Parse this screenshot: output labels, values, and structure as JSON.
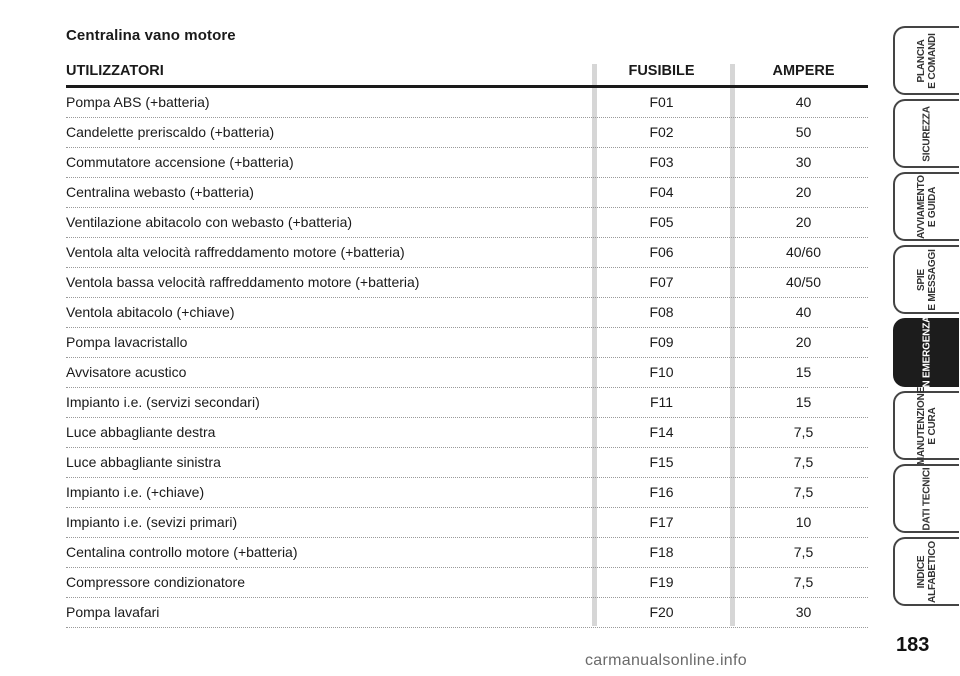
{
  "section_title": "Centralina vano motore",
  "table": {
    "headers": {
      "user": "UTILIZZATORI",
      "fuse": "FUSIBILE",
      "amp": "AMPERE"
    },
    "rows": [
      {
        "user": "Pompa ABS (+batteria)",
        "fuse": "F01",
        "amp": "40"
      },
      {
        "user": "Candelette preriscaldo (+batteria)",
        "fuse": "F02",
        "amp": "50"
      },
      {
        "user": "Commutatore accensione (+batteria)",
        "fuse": "F03",
        "amp": "30"
      },
      {
        "user": "Centralina webasto (+batteria)",
        "fuse": "F04",
        "amp": "20"
      },
      {
        "user": "Ventilazione abitacolo con webasto (+batteria)",
        "fuse": "F05",
        "amp": "20"
      },
      {
        "user": "Ventola alta velocità raffreddamento motore (+batteria)",
        "fuse": "F06",
        "amp": "40/60"
      },
      {
        "user": "Ventola bassa velocità raffreddamento motore (+batteria)",
        "fuse": "F07",
        "amp": "40/50"
      },
      {
        "user": "Ventola abitacolo (+chiave)",
        "fuse": "F08",
        "amp": "40"
      },
      {
        "user": "Pompa lavacristallo",
        "fuse": "F09",
        "amp": "20"
      },
      {
        "user": "Avvisatore acustico",
        "fuse": "F10",
        "amp": "15"
      },
      {
        "user": "Impianto i.e. (servizi secondari)",
        "fuse": "F11",
        "amp": "15"
      },
      {
        "user": "Luce abbagliante destra",
        "fuse": "F14",
        "amp": "7,5"
      },
      {
        "user": "Luce abbagliante sinistra",
        "fuse": "F15",
        "amp": "7,5"
      },
      {
        "user": "Impianto i.e. (+chiave)",
        "fuse": "F16",
        "amp": "7,5"
      },
      {
        "user": "Impianto i.e. (sevizi primari)",
        "fuse": "F17",
        "amp": "10"
      },
      {
        "user": "Centalina controllo motore (+batteria)",
        "fuse": "F18",
        "amp": "7,5"
      },
      {
        "user": "Compressore condizionatore",
        "fuse": "F19",
        "amp": "7,5"
      },
      {
        "user": "Pompa lavafari",
        "fuse": "F20",
        "amp": "30"
      }
    ]
  },
  "tabs": [
    {
      "label": "PLANCIA\nE COMANDI",
      "active": false
    },
    {
      "label": "SICUREZZA",
      "active": false
    },
    {
      "label": "AVVIAMENTO\nE GUIDA",
      "active": false
    },
    {
      "label": "SPIE\nE MESSAGGI",
      "active": false
    },
    {
      "label": "IN EMERGENZA",
      "active": true
    },
    {
      "label": "MANUTENZIONE\nE CURA",
      "active": false
    },
    {
      "label": "DATI TECNICI",
      "active": false
    },
    {
      "label": "INDICE\nALFABETICO",
      "active": false
    }
  ],
  "page_number": "183",
  "watermark": "carmanualsonline.info",
  "colors": {
    "active_tab": "#1c1c1c",
    "separator": "#d6d6d6"
  }
}
